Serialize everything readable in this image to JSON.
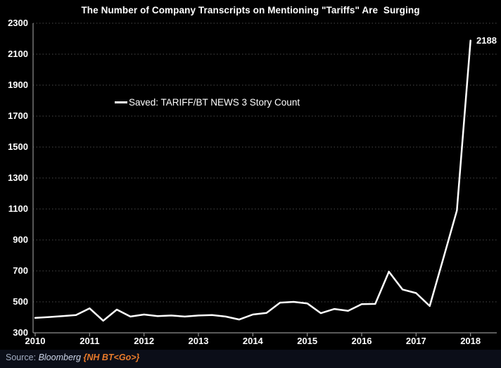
{
  "title": "The Number of Company Transcripts on Mentioning \"Tariffs\" Are  Surging",
  "legend": {
    "label": "Saved: TARIFF/BT NEWS 3 Story Count"
  },
  "annotation": {
    "last_point_label": "2188"
  },
  "source": {
    "prefix": "Source: ",
    "name": "Bloomberg ",
    "command": "{NH BT<Go>}"
  },
  "colors": {
    "background": "#000000",
    "line": "#ffffff",
    "grid": "#4a4a4a",
    "axis": "#8f8f8f",
    "text": "#ffffff",
    "source_prefix": "#a3adc2",
    "source_name": "#ccd5e8",
    "source_command": "#e87a2a",
    "footer_background": "#0b0e18"
  },
  "chart_data": {
    "type": "line",
    "title": "The Number of Company Transcripts on Mentioning \"Tariffs\" Are  Surging",
    "xlabel": "",
    "ylabel": "",
    "x_unit": "year (quarterly points)",
    "x": [
      2010.0,
      2010.25,
      2010.5,
      2010.75,
      2011.0,
      2011.25,
      2011.5,
      2011.75,
      2012.0,
      2012.25,
      2012.5,
      2012.75,
      2013.0,
      2013.25,
      2013.5,
      2013.75,
      2014.0,
      2014.25,
      2014.5,
      2014.75,
      2015.0,
      2015.25,
      2015.5,
      2015.75,
      2016.0,
      2016.25,
      2016.5,
      2016.75,
      2017.0,
      2017.25,
      2017.5,
      2017.75,
      2018.0
    ],
    "series": [
      {
        "name": "Saved: TARIFF/BT NEWS 3 Story Count",
        "values": [
          397,
          402,
          408,
          415,
          458,
          378,
          450,
          405,
          418,
          408,
          412,
          405,
          412,
          415,
          405,
          386,
          418,
          428,
          495,
          500,
          490,
          427,
          454,
          442,
          485,
          487,
          695,
          580,
          557,
          473,
          780,
          1090,
          2188
        ]
      }
    ],
    "x_ticks": [
      2010,
      2011,
      2012,
      2013,
      2014,
      2015,
      2016,
      2017,
      2018
    ],
    "y_ticks": [
      300,
      500,
      700,
      900,
      1100,
      1300,
      1500,
      1700,
      1900,
      2100,
      2300
    ],
    "ylim": [
      300,
      2300
    ],
    "xlim": [
      2010,
      2018.5
    ],
    "grid": "horizontal dotted",
    "legend_position": "inside-top-left",
    "last_point_label": "2188"
  }
}
